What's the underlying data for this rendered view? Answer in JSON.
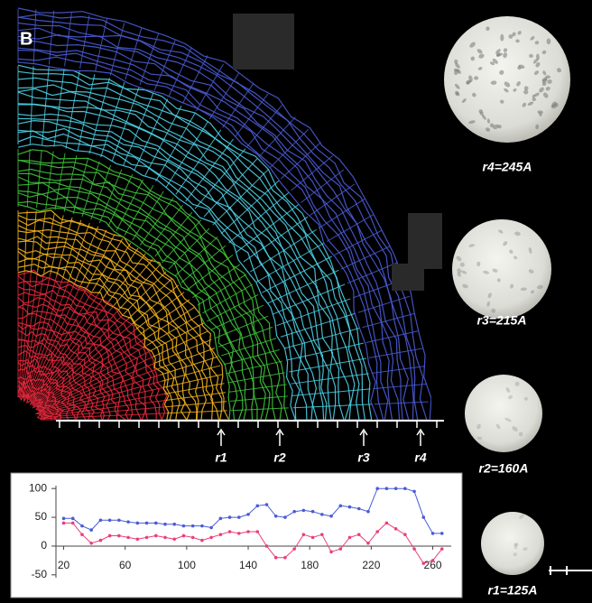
{
  "panel_label": "B",
  "radius_markers": [
    "r1",
    "r2",
    "r3",
    "r4"
  ],
  "spheres": [
    "r4=245A",
    "r3=215A",
    "r2=160A",
    "r1=125A"
  ],
  "chart_data": {
    "type": "line",
    "x": [
      20,
      26,
      32,
      38,
      44,
      50,
      56,
      62,
      68,
      74,
      80,
      86,
      92,
      98,
      104,
      110,
      116,
      122,
      128,
      134,
      140,
      146,
      152,
      158,
      164,
      170,
      176,
      182,
      188,
      194,
      200,
      206,
      212,
      218,
      224,
      230,
      236,
      242,
      248,
      254,
      260,
      266
    ],
    "series": [
      {
        "color": "#4a5bd6",
        "values": [
          48,
          48,
          35,
          28,
          45,
          45,
          45,
          42,
          40,
          40,
          40,
          38,
          38,
          35,
          35,
          35,
          32,
          48,
          50,
          50,
          55,
          70,
          72,
          52,
          50,
          60,
          62,
          60,
          55,
          52,
          70,
          68,
          65,
          60,
          100,
          100,
          100,
          100,
          95,
          50,
          22,
          22
        ]
      },
      {
        "color": "#e8407a",
        "values": [
          40,
          40,
          20,
          5,
          10,
          18,
          18,
          15,
          12,
          15,
          18,
          15,
          12,
          18,
          15,
          10,
          15,
          20,
          25,
          22,
          25,
          25,
          0,
          -20,
          -20,
          -5,
          20,
          15,
          20,
          -10,
          -5,
          15,
          20,
          5,
          25,
          40,
          30,
          20,
          -5,
          -30,
          -25,
          -5
        ]
      }
    ],
    "xlim": [
      15,
      272
    ],
    "ylim": [
      -55,
      105
    ],
    "xticks": [
      20,
      60,
      100,
      140,
      180,
      220,
      260
    ],
    "yticks": [
      100,
      50,
      0,
      -50
    ],
    "grid": false
  }
}
